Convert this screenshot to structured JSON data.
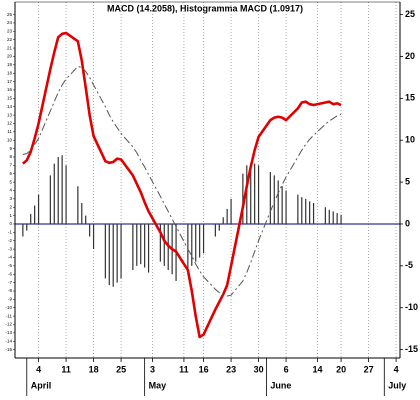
{
  "chart_data": {
    "type": "line",
    "title": "MACD (14.2058), Histogramma MACD (1.0917)",
    "x": [
      "03-31",
      "04-01",
      "04-02",
      "04-03",
      "04-04",
      "04-07",
      "04-08",
      "04-09",
      "04-10",
      "04-11",
      "04-14",
      "04-15",
      "04-16",
      "04-17",
      "04-18",
      "04-21",
      "04-22",
      "04-23",
      "04-24",
      "04-25",
      "04-28",
      "04-29",
      "04-30",
      "05-01",
      "05-02",
      "05-05",
      "05-06",
      "05-07",
      "05-08",
      "05-09",
      "05-12",
      "05-13",
      "05-14",
      "05-15",
      "05-16",
      "05-19",
      "05-20",
      "05-21",
      "05-22",
      "05-23",
      "05-26",
      "05-27",
      "05-28",
      "05-29",
      "05-30",
      "06-02",
      "06-03",
      "06-04",
      "06-05",
      "06-06",
      "06-09",
      "06-10",
      "06-11",
      "06-12",
      "06-13",
      "06-16",
      "06-17",
      "06-18",
      "06-19",
      "06-20"
    ],
    "series": [
      {
        "type": "bar",
        "color": "#333333",
        "values": [
          -1.5,
          -0.8,
          1.2,
          2.2,
          3.5,
          5.8,
          7.2,
          8,
          8.2,
          7,
          4.5,
          2.5,
          1,
          -1.5,
          -3,
          -6.5,
          -7.3,
          -7.5,
          -7,
          -6.5,
          -5.5,
          -5,
          -4.8,
          -5.2,
          -5.8,
          -4.5,
          -5,
          -5.5,
          -6,
          -6.8,
          -5.5,
          -5,
          -4.5,
          -4,
          -3.5,
          -1.5,
          -0.8,
          0.8,
          1.8,
          3,
          6,
          7,
          7.2,
          7.2,
          7,
          6.2,
          5.8,
          5.2,
          4.5,
          4,
          3.5,
          3.2,
          3,
          2.7,
          2.5,
          2,
          1.7,
          1.5,
          1.3,
          1.1
        ]
      },
      {
        "type": "line",
        "color": "#e00000",
        "values": [
          7.2,
          7.6,
          8.6,
          10.2,
          12,
          18.5,
          20.5,
          22.3,
          22.7,
          22.8,
          21.8,
          19.5,
          16.3,
          13,
          10.5,
          7.5,
          7.3,
          7.4,
          7.8,
          7.7,
          5.8,
          4.8,
          3.8,
          2.6,
          1.5,
          -1,
          -2,
          -2.6,
          -3,
          -3.3,
          -5.5,
          -8,
          -11,
          -13.5,
          -13.2,
          -10.2,
          -9.3,
          -8.4,
          -7.3,
          -5,
          2,
          4.5,
          6.8,
          8.8,
          10.4,
          12.4,
          12.7,
          12.8,
          12.7,
          12.4,
          13.8,
          14.5,
          14.6,
          14.3,
          14.2,
          14.5,
          14.6,
          14.3,
          14.4,
          14.2
        ]
      },
      {
        "type": "line",
        "color": "#555555",
        "dashed": true,
        "values": [
          8.3,
          8.4,
          8.8,
          9.5,
          10.2,
          13.5,
          14.6,
          15.7,
          16.6,
          17.3,
          18.8,
          18.7,
          18.2,
          17.5,
          16.6,
          14,
          13,
          12.2,
          11.5,
          10.8,
          9.2,
          8.5,
          7.6,
          6.8,
          5.9,
          3.3,
          2.4,
          1.5,
          0.6,
          -0.3,
          -3,
          -3.8,
          -4.8,
          -5.6,
          -6.3,
          -7.8,
          -8.2,
          -8.5,
          -8.6,
          -8.5,
          -6.8,
          -5.8,
          -4.6,
          -3.3,
          -2,
          1.5,
          2.6,
          3.7,
          4.7,
          5.6,
          8,
          8.8,
          9.5,
          10.1,
          10.6,
          11.9,
          12.3,
          12.6,
          12.9,
          13.1
        ]
      }
    ],
    "xlim": [
      "03-29",
      "07-05"
    ],
    "xticks": [
      {
        "value": "04-04",
        "label": "4"
      },
      {
        "value": "04-11",
        "label": "11"
      },
      {
        "value": "04-18",
        "label": "18"
      },
      {
        "value": "04-25",
        "label": "25"
      },
      {
        "value": "05-03",
        "label": "3"
      },
      {
        "value": "05-11",
        "label": "11"
      },
      {
        "value": "05-16",
        "label": "16"
      },
      {
        "value": "05-23",
        "label": "23"
      },
      {
        "value": "05-30",
        "label": "30"
      },
      {
        "value": "06-06",
        "label": "6"
      },
      {
        "value": "06-14",
        "label": "14"
      },
      {
        "value": "06-20",
        "label": "20"
      },
      {
        "value": "06-27",
        "label": "27"
      },
      {
        "value": "07-04",
        "label": "4"
      }
    ],
    "months": [
      {
        "value": "04-01",
        "label": "April"
      },
      {
        "value": "05-01",
        "label": "May"
      },
      {
        "value": "06-01",
        "label": "June"
      },
      {
        "value": "07-01",
        "label": "July"
      }
    ],
    "ylim": [
      -16,
      26.5
    ],
    "yticks": [
      -15,
      -10,
      -5,
      0,
      5,
      10,
      15,
      20,
      25
    ],
    "y2lim": [
      -16,
      26.5
    ],
    "y2ticks": [
      -15,
      -14,
      -13,
      -12,
      -11,
      -10,
      -9,
      -8,
      -7,
      -6,
      -5,
      -4,
      -3,
      -2,
      -1,
      0,
      1,
      2,
      3,
      4,
      5,
      6,
      7,
      8,
      9,
      10,
      11,
      12,
      13,
      14,
      15,
      16,
      17,
      18,
      19,
      20,
      21,
      22,
      23,
      24,
      25
    ],
    "zero_line_color": "#000080",
    "grid": true
  }
}
